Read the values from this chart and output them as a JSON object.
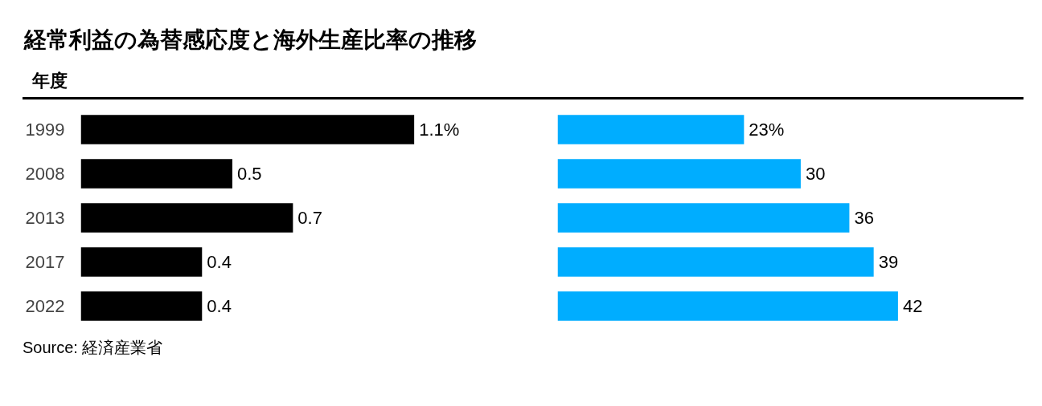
{
  "chart_data": [
    {
      "type": "bar",
      "orientation": "horizontal",
      "title": "経常利益の為替感応度と海外生産比率の推移",
      "ylabel": "年度",
      "categories": [
        "1999",
        "2008",
        "2013",
        "2017",
        "2022"
      ],
      "series": [
        {
          "color": "#000000",
          "values": [
            1.1,
            0.5,
            0.7,
            0.4,
            0.4
          ],
          "value_labels": [
            "1.1%",
            "0.5",
            "0.7",
            "0.4",
            "0.4"
          ]
        }
      ],
      "tick_labels": "y",
      "grid": false,
      "annotations": [
        "Source: 経済産業省"
      ]
    },
    {
      "type": "bar",
      "orientation": "horizontal",
      "categories": [
        "1999",
        "2008",
        "2013",
        "2017",
        "2022"
      ],
      "series": [
        {
          "color": "#00adff",
          "values": [
            23,
            30,
            36,
            39,
            42
          ],
          "value_labels": [
            "23%",
            "30",
            "36",
            "39",
            "42"
          ]
        }
      ],
      "tick_labels": false,
      "grid": false
    }
  ]
}
